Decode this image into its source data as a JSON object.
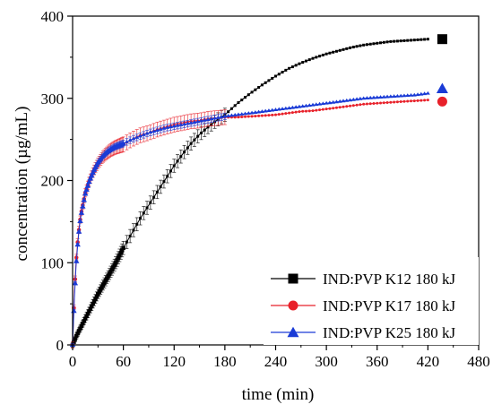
{
  "chart_data": {
    "type": "scatter",
    "xlabel": "time (min)",
    "ylabel": "concentration (µg/mL)",
    "xlim": [
      0,
      480
    ],
    "ylim": [
      0,
      400
    ],
    "x_ticks": [
      "0",
      "60",
      "120",
      "180",
      "240",
      "300",
      "360",
      "420",
      "480"
    ],
    "y_ticks": [
      "0",
      "100",
      "200",
      "300",
      "400"
    ],
    "grid": false,
    "legend_position": "bottom-right",
    "series": [
      {
        "name": "IND:PVP K12 180 kJ",
        "color": "#000000",
        "marker": "square",
        "x": [
          0,
          5,
          10,
          15,
          20,
          25,
          30,
          35,
          40,
          45,
          50,
          55,
          60,
          70,
          80,
          90,
          100,
          110,
          120,
          130,
          140,
          150,
          160,
          170,
          180,
          195,
          210,
          225,
          240,
          255,
          270,
          285,
          300,
          315,
          330,
          345,
          360,
          375,
          390,
          405,
          420
        ],
        "y": [
          0,
          12,
          22,
          32,
          42,
          52,
          62,
          71,
          80,
          89,
          98,
          108,
          118,
          136,
          154,
          170,
          186,
          202,
          218,
          232,
          245,
          256,
          265,
          273,
          280,
          294,
          306,
          317,
          327,
          336,
          343,
          349,
          354,
          358,
          362,
          365,
          367,
          369,
          370,
          371,
          372
        ],
        "error_bar": 8,
        "error_bar_xmax": 180,
        "highlight": {
          "x": 437,
          "y": 372
        }
      },
      {
        "name": "IND:PVP K17 180 kJ",
        "color": "#e8212a",
        "marker": "circle",
        "x": [
          0,
          2,
          4,
          6,
          8,
          10,
          15,
          20,
          25,
          30,
          35,
          40,
          45,
          50,
          55,
          60,
          70,
          80,
          90,
          100,
          110,
          120,
          130,
          140,
          150,
          160,
          170,
          180,
          195,
          210,
          225,
          240,
          255,
          270,
          285,
          300,
          315,
          330,
          345,
          360,
          375,
          390,
          405,
          420
        ],
        "y": [
          0,
          60,
          100,
          125,
          145,
          160,
          185,
          200,
          212,
          221,
          228,
          233,
          237,
          240,
          242,
          244,
          250,
          255,
          258,
          262,
          265,
          268,
          270,
          272,
          273,
          275,
          276,
          277,
          277,
          278,
          279,
          280,
          282,
          284,
          285,
          287,
          289,
          291,
          293,
          294,
          295,
          296,
          297,
          298
        ],
        "error_bar": 9,
        "error_bar_xmax": 180,
        "highlight": {
          "x": 437,
          "y": 296
        }
      },
      {
        "name": "IND:PVP K25 180 kJ",
        "color": "#1a3bd6",
        "marker": "triangle",
        "x": [
          0,
          2,
          4,
          6,
          8,
          10,
          15,
          20,
          25,
          30,
          35,
          40,
          45,
          50,
          55,
          60,
          70,
          80,
          90,
          100,
          110,
          120,
          130,
          140,
          150,
          160,
          170,
          180,
          195,
          210,
          225,
          240,
          255,
          270,
          285,
          300,
          315,
          330,
          345,
          360,
          375,
          390,
          405,
          420
        ],
        "y": [
          0,
          55,
          95,
          122,
          143,
          158,
          184,
          200,
          212,
          222,
          229,
          234,
          238,
          241,
          243,
          245,
          250,
          254,
          258,
          261,
          264,
          266,
          268,
          270,
          272,
          274,
          276,
          278,
          280,
          282,
          284,
          286,
          288,
          290,
          292,
          294,
          296,
          298,
          300,
          301,
          302,
          303,
          304,
          306
        ],
        "error_bar": 4,
        "error_bar_xmax": 180,
        "highlight": {
          "x": 437,
          "y": 312
        }
      }
    ]
  }
}
